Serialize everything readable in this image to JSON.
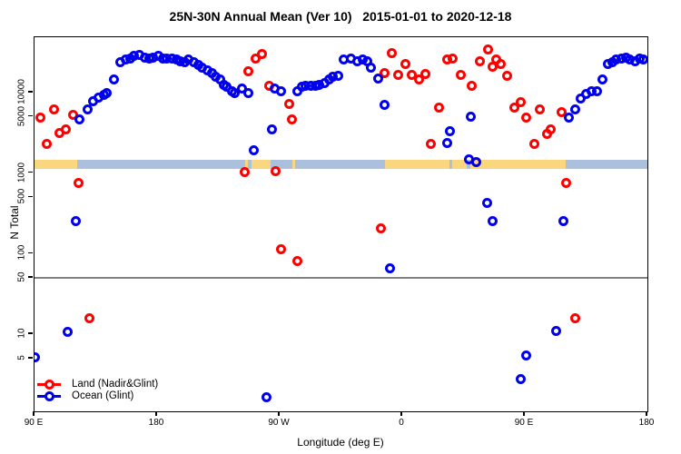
{
  "title": {
    "part1": "25N-30N Annual Mean (Ver 10)",
    "part2": "2015-01-01 to 2020-12-18"
  },
  "axes": {
    "x": {
      "label": "Longitude (deg E)",
      "ticks": [
        {
          "deg": 90,
          "label": "90 E"
        },
        {
          "deg": 180,
          "label": "180"
        },
        {
          "deg": 270,
          "label": "90 W"
        },
        {
          "deg": 360,
          "label": "0"
        },
        {
          "deg": 450,
          "label": "90 E"
        },
        {
          "deg": 540,
          "label": "180"
        }
      ]
    },
    "y": {
      "label": "N Total",
      "scale": "log",
      "ticks": [
        {
          "value": 5,
          "label": "5"
        },
        {
          "value": 10,
          "label": "10"
        },
        {
          "value": 50,
          "label": "50"
        },
        {
          "value": 100,
          "label": "100"
        },
        {
          "value": 500,
          "label": "500"
        },
        {
          "value": 1000,
          "label": "1000"
        },
        {
          "value": 5000,
          "label": "5000"
        },
        {
          "value": 10000,
          "label": "10000"
        }
      ]
    }
  },
  "legend": [
    {
      "label": "Land (Nadir&Glint)",
      "color": "#FF0000"
    },
    {
      "label": "Ocean (Glint)",
      "color": "#0000EE"
    }
  ],
  "colors": {
    "land_series": "#FF0000",
    "ocean_series": "#0000EE",
    "band_land": "#FAD67E",
    "band_ocean": "#ABC0DC",
    "ref_line": "#808080"
  },
  "chart_data": {
    "type": "scatter",
    "title": "25N-30N Annual Mean (Ver 10)   2015-01-01 to 2020-12-18",
    "xlabel": "Longitude (deg E)",
    "ylabel": "N Total",
    "x_axis_deg_range": [
      90,
      540
    ],
    "y_log_range": [
      1.1,
      48000
    ],
    "grid": false,
    "legend_position": "bottom-left-inside",
    "ref_line": {
      "value": 50
    },
    "surface_band": {
      "description": "land/ocean strip near y=1300",
      "segments": [
        {
          "from": 90,
          "to": 121,
          "type": "land"
        },
        {
          "from": 121,
          "to": 244.5,
          "type": "ocean"
        },
        {
          "from": 244.5,
          "to": 246.5,
          "type": "land"
        },
        {
          "from": 246.5,
          "to": 249.5,
          "type": "ocean"
        },
        {
          "from": 249.5,
          "to": 263.5,
          "type": "land"
        },
        {
          "from": 263.5,
          "to": 279.5,
          "type": "ocean"
        },
        {
          "from": 279.5,
          "to": 281.5,
          "type": "land"
        },
        {
          "from": 281.5,
          "to": 347,
          "type": "ocean"
        },
        {
          "from": 347,
          "to": 394.5,
          "type": "land"
        },
        {
          "from": 394.5,
          "to": 396.5,
          "type": "ocean"
        },
        {
          "from": 396.5,
          "to": 407,
          "type": "land"
        },
        {
          "from": 407,
          "to": 410,
          "type": "ocean"
        },
        {
          "from": 410,
          "to": 480,
          "type": "land"
        },
        {
          "from": 480,
          "to": 540,
          "type": "ocean"
        }
      ]
    },
    "series": [
      {
        "name": "Land (Nadir&Glint)",
        "color": "#FF0000",
        "points": [
          [
            94,
            4960
          ],
          [
            99.3,
            2280
          ],
          [
            104,
            6110
          ],
          [
            108,
            3110
          ],
          [
            112.7,
            3540
          ],
          [
            118,
            5360
          ],
          [
            122,
            765
          ],
          [
            130,
            15.6
          ],
          [
            244,
            1020
          ],
          [
            246.7,
            18200
          ],
          [
            252,
            26800
          ],
          [
            257.3,
            29800
          ],
          [
            262,
            12300
          ],
          [
            267.3,
            1050
          ],
          [
            271.3,
            115
          ],
          [
            277.3,
            7140
          ],
          [
            279.3,
            4590
          ],
          [
            282.7,
            80
          ],
          [
            344,
            204
          ],
          [
            347.3,
            17700
          ],
          [
            352,
            31300
          ],
          [
            356.7,
            16400
          ],
          [
            362,
            22400
          ],
          [
            367.3,
            16800
          ],
          [
            372,
            14400
          ],
          [
            376.7,
            17200
          ],
          [
            380.7,
            2280
          ],
          [
            387.3,
            6600
          ],
          [
            392.7,
            25500
          ],
          [
            396.7,
            26800
          ],
          [
            402.7,
            16400
          ],
          [
            411.3,
            12300
          ],
          [
            416.7,
            24800
          ],
          [
            422.7,
            33900
          ],
          [
            426,
            21200
          ],
          [
            428.7,
            26100
          ],
          [
            432,
            22400
          ],
          [
            436.7,
            16000
          ],
          [
            442,
            6600
          ],
          [
            446.7,
            7520
          ],
          [
            451.3,
            4960
          ],
          [
            456.7,
            2280
          ],
          [
            461.3,
            6110
          ],
          [
            466,
            3030
          ],
          [
            469.3,
            3540
          ],
          [
            476.7,
            5650
          ],
          [
            480,
            750
          ],
          [
            487.3,
            15.6
          ]
        ]
      },
      {
        "name": "Ocean (Glint)",
        "color": "#0000EE",
        "points": [
          [
            90,
            5.2
          ],
          [
            114,
            10.8
          ],
          [
            120,
            257
          ],
          [
            123.3,
            4710
          ],
          [
            128.7,
            6110
          ],
          [
            133.3,
            7720
          ],
          [
            136.7,
            8780
          ],
          [
            140.7,
            9490
          ],
          [
            143.3,
            10000
          ],
          [
            148,
            14400
          ],
          [
            153.3,
            23600
          ],
          [
            156.7,
            25500
          ],
          [
            160,
            26800
          ],
          [
            163.3,
            28300
          ],
          [
            167.3,
            29000
          ],
          [
            170.7,
            27500
          ],
          [
            174,
            26800
          ],
          [
            177.3,
            27500
          ],
          [
            180.7,
            28300
          ],
          [
            184,
            26800
          ],
          [
            187.3,
            26800
          ],
          [
            190.7,
            26800
          ],
          [
            194,
            26100
          ],
          [
            197.3,
            24200
          ],
          [
            200,
            23600
          ],
          [
            203.3,
            25500
          ],
          [
            206.7,
            23600
          ],
          [
            210,
            21800
          ],
          [
            213.3,
            20200
          ],
          [
            216.7,
            18700
          ],
          [
            220,
            17700
          ],
          [
            222.7,
            15600
          ],
          [
            226,
            14400
          ],
          [
            228.7,
            12600
          ],
          [
            231.3,
            11700
          ],
          [
            234.7,
            10300
          ],
          [
            237.3,
            10000
          ],
          [
            242,
            11100
          ],
          [
            247.3,
            10000
          ],
          [
            250.7,
            1910
          ],
          [
            260,
            1.67
          ],
          [
            264,
            3450
          ],
          [
            266,
            11100
          ],
          [
            271.3,
            10500
          ],
          [
            282.7,
            10300
          ],
          [
            286,
            11700
          ],
          [
            289.3,
            12300
          ],
          [
            292.7,
            12300
          ],
          [
            296,
            12000
          ],
          [
            299.3,
            12600
          ],
          [
            302.7,
            13000
          ],
          [
            306,
            14400
          ],
          [
            309.3,
            15600
          ],
          [
            312.7,
            16000
          ],
          [
            317.3,
            26100
          ],
          [
            322,
            26800
          ],
          [
            326.7,
            24200
          ],
          [
            330.7,
            25500
          ],
          [
            334,
            24200
          ],
          [
            337.3,
            20200
          ],
          [
            342,
            14800
          ],
          [
            346.7,
            7130
          ],
          [
            350.7,
            65
          ],
          [
            393.3,
            2340
          ],
          [
            394.7,
            3360
          ],
          [
            408.7,
            1500
          ],
          [
            410,
            5090
          ],
          [
            414,
            1390
          ],
          [
            422,
            422
          ],
          [
            426,
            257
          ],
          [
            446.7,
            2.8
          ],
          [
            450.7,
            5.4
          ],
          [
            472.7,
            11
          ],
          [
            478,
            257
          ],
          [
            482,
            4840
          ],
          [
            486.7,
            6110
          ],
          [
            490.7,
            8340
          ],
          [
            495.3,
            9740
          ],
          [
            499.3,
            10300
          ],
          [
            502.7,
            10500
          ],
          [
            506.7,
            14400
          ],
          [
            510.7,
            22400
          ],
          [
            514,
            23600
          ],
          [
            517.3,
            26100
          ],
          [
            520.7,
            26800
          ],
          [
            524,
            27500
          ],
          [
            527.3,
            26100
          ],
          [
            530.7,
            24200
          ],
          [
            534,
            26800
          ],
          [
            537.3,
            26100
          ]
        ]
      }
    ]
  }
}
